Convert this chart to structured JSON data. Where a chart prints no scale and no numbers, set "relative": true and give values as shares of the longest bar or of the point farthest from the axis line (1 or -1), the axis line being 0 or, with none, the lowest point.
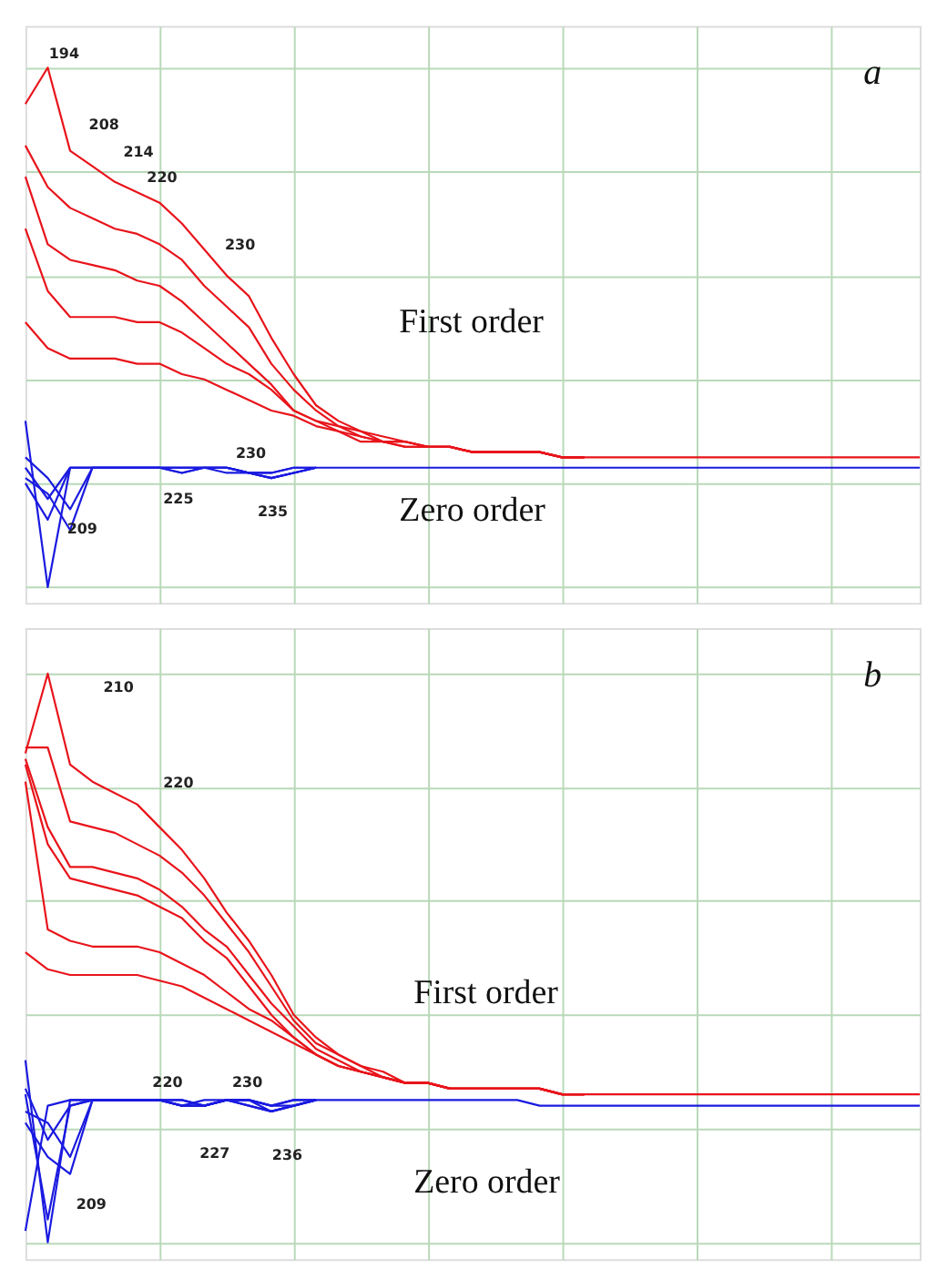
{
  "chart_data": [
    {
      "type": "line",
      "title": "a",
      "relative": true,
      "grid": true,
      "legend": false,
      "marker": "none",
      "line_style": "solid",
      "categories": [
        null,
        null,
        null,
        null,
        null,
        null,
        null,
        null,
        null,
        null,
        null,
        null,
        null,
        null,
        null,
        null,
        null,
        null,
        null,
        null,
        null,
        null,
        null,
        null,
        null,
        null,
        null,
        null,
        null,
        null,
        null,
        null,
        null,
        null,
        null,
        null,
        null,
        null,
        null,
        null,
        null
      ],
      "series": [
        {
          "color": "#e8141b",
          "values": [
            0.93,
            1.0,
            0.84,
            0.81,
            0.78,
            0.76,
            0.74,
            0.7,
            0.65,
            0.6,
            0.56,
            0.48,
            0.41,
            0.35,
            0.32,
            0.3,
            0.29,
            0.28,
            0.27,
            0.27,
            0.26,
            0.26,
            0.26,
            0.26,
            0.25,
            0.25,
            null,
            null,
            null,
            null,
            null,
            null,
            null,
            null,
            null,
            null,
            null,
            null,
            null,
            null,
            null
          ]
        },
        {
          "color": "#e8141b",
          "values": [
            0.85,
            0.77,
            0.73,
            0.71,
            0.69,
            0.68,
            0.66,
            0.63,
            0.58,
            0.54,
            0.5,
            0.43,
            0.38,
            0.34,
            0.31,
            0.3,
            0.28,
            0.28,
            0.27,
            0.27,
            0.26,
            0.26,
            0.26,
            0.26,
            0.25,
            0.25,
            null,
            null,
            null,
            null,
            null,
            null,
            null,
            null,
            null,
            null,
            null,
            null,
            null,
            null,
            null
          ]
        },
        {
          "color": "#e8141b",
          "values": [
            0.79,
            0.66,
            0.63,
            0.62,
            0.61,
            0.59,
            0.58,
            0.55,
            0.51,
            0.47,
            0.43,
            0.39,
            0.34,
            0.32,
            0.3,
            0.29,
            0.28,
            0.27,
            0.27,
            0.27,
            0.26,
            0.26,
            0.26,
            0.26,
            0.25,
            0.25,
            null,
            null,
            null,
            null,
            null,
            null,
            null,
            null,
            null,
            null,
            null,
            null,
            null,
            null,
            null
          ]
        },
        {
          "color": "#e8141b",
          "values": [
            0.69,
            0.57,
            0.52,
            0.52,
            0.52,
            0.51,
            0.51,
            0.49,
            0.46,
            0.43,
            0.41,
            0.38,
            0.34,
            0.32,
            0.31,
            0.29,
            0.28,
            0.28,
            0.27,
            0.27,
            0.26,
            0.26,
            0.26,
            0.26,
            0.25,
            0.25,
            null,
            null,
            null,
            null,
            null,
            null,
            null,
            null,
            null,
            null,
            null,
            null,
            null,
            null,
            null
          ]
        },
        {
          "color": "#e8141b",
          "values": [
            0.51,
            0.46,
            0.44,
            0.44,
            0.44,
            0.43,
            0.43,
            0.41,
            0.4,
            0.38,
            0.36,
            0.34,
            0.33,
            0.31,
            0.3,
            0.28,
            0.28,
            0.27,
            0.27,
            0.27,
            0.26,
            0.26,
            0.26,
            0.26,
            0.25,
            0.25,
            0.25,
            0.25,
            0.25,
            0.25,
            0.25,
            0.25,
            0.25,
            0.25,
            0.25,
            0.25,
            0.25,
            0.25,
            0.25,
            0.25,
            0.25
          ]
        },
        {
          "color": "#1a1ae0",
          "values": [
            0.32,
            0.0,
            0.23,
            0.23,
            0.23,
            0.23,
            0.23,
            0.23,
            0.23,
            0.23,
            0.22,
            0.21,
            0.22,
            0.23,
            null,
            null,
            null,
            null,
            null,
            null,
            null,
            null,
            null,
            null,
            null,
            null,
            null,
            null,
            null,
            null,
            null,
            null,
            null,
            null,
            null,
            null,
            null,
            null,
            null,
            null,
            null
          ]
        },
        {
          "color": "#1a1ae0",
          "values": [
            0.2,
            0.13,
            0.23,
            0.23,
            0.23,
            0.23,
            0.23,
            0.22,
            0.23,
            0.23,
            0.22,
            0.22,
            0.23,
            0.23,
            null,
            null,
            null,
            null,
            null,
            null,
            null,
            null,
            null,
            null,
            null,
            null,
            null,
            null,
            null,
            null,
            null,
            null,
            null,
            null,
            null,
            null,
            null,
            null,
            null,
            null,
            null
          ]
        },
        {
          "color": "#1a1ae0",
          "values": [
            0.23,
            0.17,
            0.23,
            0.23,
            0.23,
            0.23,
            0.23,
            0.23,
            0.23,
            0.22,
            0.22,
            0.21,
            0.22,
            0.23,
            null,
            null,
            null,
            null,
            null,
            null,
            null,
            null,
            null,
            null,
            null,
            null,
            null,
            null,
            null,
            null,
            null,
            null,
            null,
            null,
            null,
            null,
            null,
            null,
            null,
            null,
            null
          ]
        },
        {
          "color": "#1a1ae0",
          "values": [
            0.21,
            0.18,
            0.11,
            0.23,
            0.23,
            0.23,
            0.23,
            0.23,
            0.23,
            0.23,
            0.22,
            0.22,
            0.23,
            0.23,
            null,
            null,
            null,
            null,
            null,
            null,
            null,
            null,
            null,
            null,
            null,
            null,
            null,
            null,
            null,
            null,
            null,
            null,
            null,
            null,
            null,
            null,
            null,
            null,
            null,
            null,
            null
          ]
        },
        {
          "color": "#1a1ae0",
          "values": [
            0.25,
            0.21,
            0.15,
            0.23,
            0.23,
            0.23,
            0.23,
            0.22,
            0.23,
            0.23,
            0.22,
            0.21,
            0.22,
            0.23,
            0.23,
            0.23,
            0.23,
            0.23,
            0.23,
            0.23,
            0.23,
            0.23,
            0.23,
            0.23,
            0.23,
            0.23,
            0.23,
            0.23,
            0.23,
            0.23,
            0.23,
            0.23,
            0.23,
            0.23,
            0.23,
            0.23,
            0.23,
            0.23,
            0.23,
            0.23,
            0.23
          ]
        }
      ],
      "annotations": [
        "194",
        "208",
        "214",
        "220",
        "230",
        "First order",
        "230",
        "225",
        "235",
        "209",
        "Zero order"
      ]
    },
    {
      "type": "line",
      "title": "b",
      "relative": true,
      "grid": true,
      "legend": false,
      "marker": "none",
      "line_style": "solid",
      "categories": [
        null,
        null,
        null,
        null,
        null,
        null,
        null,
        null,
        null,
        null,
        null,
        null,
        null,
        null,
        null,
        null,
        null,
        null,
        null,
        null,
        null,
        null,
        null,
        null,
        null,
        null,
        null,
        null,
        null,
        null,
        null,
        null,
        null,
        null,
        null,
        null,
        null,
        null,
        null,
        null,
        null
      ],
      "series": [
        {
          "color": "#e8141b",
          "values": [
            0.86,
            1.0,
            0.84,
            0.81,
            0.79,
            0.77,
            0.73,
            0.69,
            0.64,
            0.58,
            0.53,
            0.47,
            0.4,
            0.36,
            0.33,
            0.31,
            0.3,
            0.28,
            0.28,
            0.27,
            0.27,
            0.27,
            0.27,
            0.27,
            0.26,
            0.26,
            null,
            null,
            null,
            null,
            null,
            null,
            null,
            null,
            null,
            null,
            null,
            null,
            null,
            null,
            null
          ]
        },
        {
          "color": "#e8141b",
          "values": [
            0.87,
            0.87,
            0.74,
            0.73,
            0.72,
            0.7,
            0.68,
            0.65,
            0.61,
            0.56,
            0.51,
            0.45,
            0.39,
            0.35,
            0.33,
            0.31,
            0.29,
            0.28,
            0.28,
            0.27,
            0.27,
            0.27,
            0.27,
            0.27,
            0.26,
            0.26,
            null,
            null,
            null,
            null,
            null,
            null,
            null,
            null,
            null,
            null,
            null,
            null,
            null,
            null,
            null
          ]
        },
        {
          "color": "#e8141b",
          "values": [
            0.85,
            0.73,
            0.66,
            0.66,
            0.65,
            0.64,
            0.62,
            0.59,
            0.55,
            0.52,
            0.47,
            0.42,
            0.38,
            0.34,
            0.32,
            0.3,
            0.29,
            0.28,
            0.28,
            0.27,
            0.27,
            0.27,
            0.27,
            0.27,
            0.26,
            0.26,
            null,
            null,
            null,
            null,
            null,
            null,
            null,
            null,
            null,
            null,
            null,
            null,
            null,
            null,
            null
          ]
        },
        {
          "color": "#e8141b",
          "values": [
            0.84,
            0.7,
            0.64,
            0.63,
            0.62,
            0.61,
            0.59,
            0.57,
            0.53,
            0.5,
            0.45,
            0.4,
            0.36,
            0.33,
            0.31,
            0.3,
            0.29,
            0.28,
            0.28,
            0.27,
            0.27,
            0.27,
            0.27,
            0.27,
            0.26,
            0.26,
            null,
            null,
            null,
            null,
            null,
            null,
            null,
            null,
            null,
            null,
            null,
            null,
            null,
            null,
            null
          ]
        },
        {
          "color": "#e8141b",
          "values": [
            0.81,
            0.55,
            0.53,
            0.52,
            0.52,
            0.52,
            0.51,
            0.49,
            0.47,
            0.44,
            0.41,
            0.39,
            0.36,
            0.33,
            0.31,
            0.3,
            0.29,
            0.28,
            0.28,
            0.27,
            0.27,
            0.27,
            0.27,
            0.27,
            0.26,
            0.26,
            null,
            null,
            null,
            null,
            null,
            null,
            null,
            null,
            null,
            null,
            null,
            null,
            null,
            null,
            null
          ]
        },
        {
          "color": "#e8141b",
          "values": [
            0.51,
            0.48,
            0.47,
            0.47,
            0.47,
            0.47,
            0.46,
            0.45,
            0.43,
            0.41,
            0.39,
            0.37,
            0.35,
            0.33,
            0.31,
            0.3,
            0.29,
            0.28,
            0.28,
            0.27,
            0.27,
            0.27,
            0.27,
            0.27,
            0.26,
            0.26,
            0.26,
            0.26,
            0.26,
            0.26,
            0.26,
            0.26,
            0.26,
            0.26,
            0.26,
            0.26,
            0.26,
            0.26,
            0.26,
            0.26,
            0.26
          ]
        },
        {
          "color": "#1a1ae0",
          "values": [
            0.32,
            0.0,
            0.25,
            0.25,
            0.25,
            0.25,
            0.25,
            0.24,
            0.24,
            0.25,
            0.25,
            0.23,
            0.24,
            0.25,
            null,
            null,
            null,
            null,
            null,
            null,
            null,
            null,
            null,
            null,
            null,
            null,
            null,
            null,
            null,
            null,
            null,
            null,
            null,
            null,
            null,
            null,
            null,
            null,
            null,
            null,
            null
          ]
        },
        {
          "color": "#1a1ae0",
          "values": [
            0.26,
            0.04,
            0.24,
            0.25,
            0.25,
            0.25,
            0.25,
            0.24,
            0.24,
            0.25,
            0.25,
            0.24,
            0.24,
            0.25,
            null,
            null,
            null,
            null,
            null,
            null,
            null,
            null,
            null,
            null,
            null,
            null,
            null,
            null,
            null,
            null,
            null,
            null,
            null,
            null,
            null,
            null,
            null,
            null,
            null,
            null,
            null
          ]
        },
        {
          "color": "#1a1ae0",
          "values": [
            0.21,
            0.15,
            0.12,
            0.25,
            0.25,
            0.25,
            0.25,
            0.25,
            0.24,
            0.25,
            0.24,
            0.23,
            0.24,
            0.25,
            null,
            null,
            null,
            null,
            null,
            null,
            null,
            null,
            null,
            null,
            null,
            null,
            null,
            null,
            null,
            null,
            null,
            null,
            null,
            null,
            null,
            null,
            null,
            null,
            null,
            null,
            null
          ]
        },
        {
          "color": "#1a1ae0",
          "values": [
            0.27,
            0.18,
            0.24,
            0.25,
            0.25,
            0.25,
            0.25,
            0.24,
            0.25,
            0.25,
            0.25,
            0.24,
            0.25,
            0.25,
            null,
            null,
            null,
            null,
            null,
            null,
            null,
            null,
            null,
            null,
            null,
            null,
            null,
            null,
            null,
            null,
            null,
            null,
            null,
            null,
            null,
            null,
            null,
            null,
            null,
            null,
            null
          ]
        },
        {
          "color": "#1a1ae0",
          "values": [
            0.23,
            0.21,
            0.15,
            0.25,
            0.25,
            0.25,
            0.25,
            0.24,
            0.24,
            0.25,
            0.24,
            0.23,
            0.24,
            0.25,
            null,
            null,
            null,
            null,
            null,
            null,
            null,
            null,
            null,
            null,
            null,
            null,
            null,
            null,
            null,
            null,
            null,
            null,
            null,
            null,
            null,
            null,
            null,
            null,
            null,
            null,
            null
          ]
        },
        {
          "color": "#1a1ae0",
          "values": [
            0.02,
            0.24,
            0.25,
            0.25,
            0.25,
            0.25,
            0.25,
            0.25,
            0.24,
            0.25,
            0.25,
            0.24,
            0.25,
            0.25,
            0.25,
            0.25,
            0.25,
            0.25,
            0.25,
            0.25,
            0.25,
            0.25,
            0.25,
            0.24,
            0.24,
            0.24,
            0.24,
            0.24,
            0.24,
            0.24,
            0.24,
            0.24,
            0.24,
            0.24,
            0.24,
            0.24,
            0.24,
            0.24,
            0.24,
            0.24,
            0.24
          ]
        }
      ],
      "annotations": [
        "210",
        "220",
        "First order",
        "220",
        "230",
        "227",
        "236",
        "209",
        "Zero order"
      ]
    }
  ]
}
